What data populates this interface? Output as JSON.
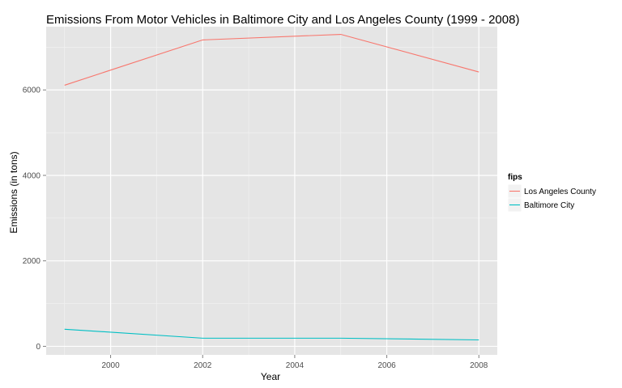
{
  "chart_data": {
    "type": "line",
    "title": "Emissions From Motor Vehicles in Baltimore City and Los Angeles County (1999 - 2008)",
    "xlabel": "Year",
    "ylabel": "Emissions (in tons)",
    "xlim": [
      1998.6,
      2008.4
    ],
    "ylim": [
      -200,
      7480
    ],
    "x_ticks": [
      2000,
      2002,
      2004,
      2006,
      2008
    ],
    "y_ticks": [
      0,
      2000,
      4000,
      6000
    ],
    "x_minor_ticks": [
      1999,
      2001,
      2003,
      2005,
      2007
    ],
    "y_minor_ticks": [
      1000,
      3000,
      5000,
      7000
    ],
    "x_tick_labels": [
      "2000",
      "2002",
      "2004",
      "2006",
      "2008"
    ],
    "y_tick_labels": [
      "0",
      "2000",
      "4000",
      "6000"
    ],
    "grid": true,
    "legend_position": "right",
    "legend_title": "fips",
    "series": [
      {
        "name": "Los Angeles County",
        "color": "#F8766D",
        "x": [
          1999,
          2002,
          2005,
          2008
        ],
        "values": [
          6110,
          7170,
          7300,
          6420
        ]
      },
      {
        "name": "Baltimore City",
        "color": "#00BFC4",
        "x": [
          1999,
          2002,
          2005,
          2008
        ],
        "values": [
          400,
          190,
          190,
          150
        ]
      }
    ]
  }
}
